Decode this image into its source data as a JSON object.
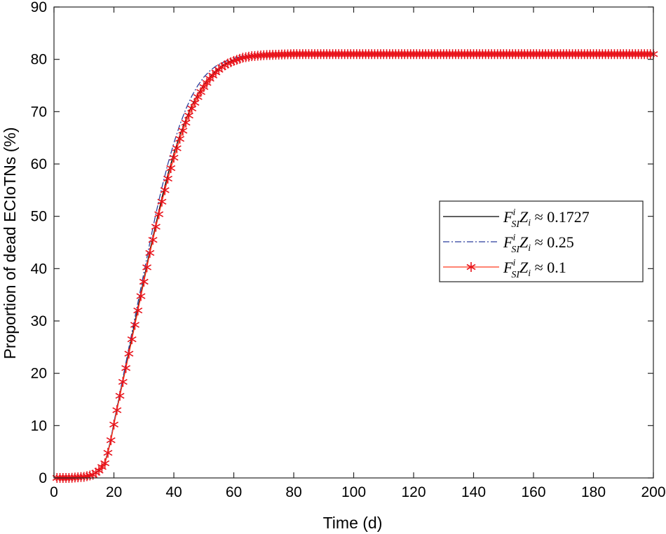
{
  "chart_data": {
    "type": "line",
    "xlabel": "Time (d)",
    "ylabel": "Proportion of dead ECIoTNs (%)",
    "xlim": [
      0,
      200
    ],
    "ylim": [
      0,
      90
    ],
    "xticks": [
      0,
      20,
      40,
      60,
      80,
      100,
      120,
      140,
      160,
      180,
      200
    ],
    "yticks": [
      0,
      10,
      20,
      30,
      40,
      50,
      60,
      70,
      80,
      90
    ],
    "grid": false,
    "legend_position": "right",
    "series": [
      {
        "name_main": "F",
        "name_sup": "i",
        "name_sub": "SI",
        "name_z": "Z",
        "name_zsub": "i",
        "name_rel": " ≈ ",
        "name_value": "0.1727",
        "color": "#000000",
        "line_style": "solid",
        "marker": "none",
        "points": [
          [
            1,
            0
          ],
          [
            5,
            0
          ],
          [
            10,
            0.2
          ],
          [
            13,
            0.6
          ],
          [
            15,
            1.5
          ],
          [
            17,
            3
          ],
          [
            18,
            5
          ],
          [
            19,
            7.5
          ],
          [
            20,
            10.5
          ],
          [
            22,
            16
          ],
          [
            24,
            21.5
          ],
          [
            26,
            27
          ],
          [
            28,
            32.5
          ],
          [
            30,
            38
          ],
          [
            32,
            43.5
          ],
          [
            34,
            48.5
          ],
          [
            36,
            53.5
          ],
          [
            38,
            58
          ],
          [
            40,
            62
          ],
          [
            42,
            65.5
          ],
          [
            44,
            68.5
          ],
          [
            46,
            71.2
          ],
          [
            48,
            73.3
          ],
          [
            50,
            75.1
          ],
          [
            52,
            76.6
          ],
          [
            54,
            77.8
          ],
          [
            56,
            78.7
          ],
          [
            58,
            79.4
          ],
          [
            60,
            79.9
          ],
          [
            63,
            80.4
          ],
          [
            66,
            80.7
          ],
          [
            70,
            80.9
          ],
          [
            75,
            81
          ],
          [
            80,
            81
          ],
          [
            100,
            81
          ],
          [
            120,
            81
          ],
          [
            140,
            81
          ],
          [
            160,
            81
          ],
          [
            180,
            81
          ],
          [
            200,
            81
          ]
        ]
      },
      {
        "name_main": "F",
        "name_sup": "i",
        "name_sub": "SI",
        "name_z": "Z",
        "name_zsub": "i",
        "name_rel": " ≈ ",
        "name_value": "0.25",
        "color": "#2a3f9d",
        "line_style": "dashdot",
        "marker": "none",
        "points": [
          [
            1,
            0
          ],
          [
            5,
            0
          ],
          [
            10,
            0.2
          ],
          [
            13,
            0.6
          ],
          [
            15,
            1.5
          ],
          [
            17,
            3
          ],
          [
            18,
            5
          ],
          [
            19,
            7.5
          ],
          [
            20,
            10.6
          ],
          [
            22,
            16.3
          ],
          [
            24,
            22
          ],
          [
            26,
            27.8
          ],
          [
            28,
            33.5
          ],
          [
            30,
            39.2
          ],
          [
            32,
            45
          ],
          [
            34,
            50.5
          ],
          [
            36,
            55.5
          ],
          [
            38,
            60
          ],
          [
            40,
            64
          ],
          [
            42,
            67.5
          ],
          [
            44,
            70.5
          ],
          [
            46,
            73
          ],
          [
            48,
            75
          ],
          [
            50,
            76.6
          ],
          [
            52,
            77.8
          ],
          [
            54,
            78.7
          ],
          [
            56,
            79.3
          ],
          [
            58,
            79.8
          ],
          [
            60,
            80.2
          ],
          [
            63,
            80.6
          ],
          [
            66,
            80.8
          ],
          [
            70,
            80.9
          ],
          [
            75,
            81
          ],
          [
            80,
            81
          ],
          [
            100,
            81
          ],
          [
            120,
            81
          ],
          [
            140,
            81
          ],
          [
            160,
            81
          ],
          [
            180,
            81
          ],
          [
            200,
            81
          ]
        ]
      },
      {
        "name_main": "F",
        "name_sup": "i",
        "name_sub": "SI",
        "name_z": "Z",
        "name_zsub": "i",
        "name_rel": " ≈ ",
        "name_value": "0.1",
        "color": "#ff3b1f",
        "marker_color": "#e8141c",
        "line_style": "solid",
        "marker": "asterisk",
        "points": [
          [
            1,
            0
          ],
          [
            5,
            0
          ],
          [
            10,
            0.2
          ],
          [
            13,
            0.6
          ],
          [
            15,
            1.4
          ],
          [
            17,
            2.8
          ],
          [
            18,
            4.8
          ],
          [
            19,
            7.2
          ],
          [
            20,
            10.2
          ],
          [
            22,
            15.7
          ],
          [
            24,
            21
          ],
          [
            26,
            26.5
          ],
          [
            28,
            32
          ],
          [
            30,
            37.5
          ],
          [
            32,
            43
          ],
          [
            34,
            48
          ],
          [
            36,
            52.8
          ],
          [
            38,
            57.2
          ],
          [
            40,
            61.2
          ],
          [
            42,
            64.8
          ],
          [
            44,
            67.9
          ],
          [
            46,
            70.6
          ],
          [
            48,
            72.8
          ],
          [
            50,
            74.7
          ],
          [
            52,
            76.3
          ],
          [
            54,
            77.5
          ],
          [
            56,
            78.5
          ],
          [
            58,
            79.2
          ],
          [
            60,
            79.7
          ],
          [
            63,
            80.3
          ],
          [
            66,
            80.6
          ],
          [
            70,
            80.8
          ],
          [
            75,
            80.9
          ],
          [
            80,
            81
          ],
          [
            100,
            81
          ],
          [
            120,
            81
          ],
          [
            140,
            81
          ],
          [
            160,
            81
          ],
          [
            180,
            81
          ],
          [
            200,
            81
          ]
        ]
      }
    ]
  }
}
